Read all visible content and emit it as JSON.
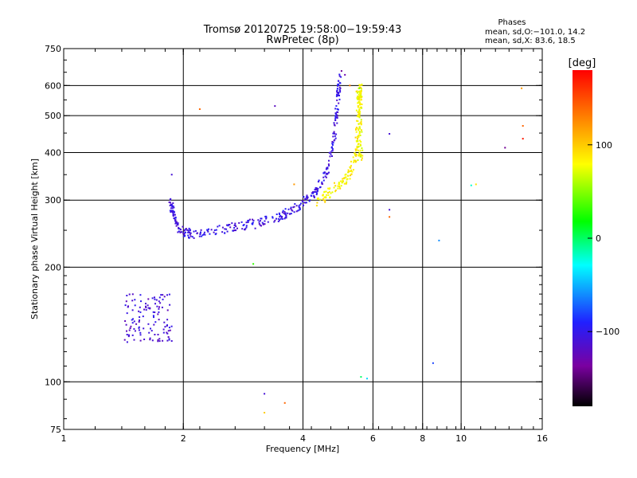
{
  "chart_data": {
    "type": "scatter",
    "title": "Tromsø 20120725  19:58:00−19:59:43",
    "subtitle": "RwPretec (8p)",
    "xlabel": "Frequency [MHz]",
    "ylabel": "Stationary phase Virtual Height [km]",
    "x_scale": "log",
    "y_scale": "log",
    "xlim": [
      1,
      16
    ],
    "ylim": [
      75,
      750
    ],
    "x_ticks": [
      1,
      2,
      4,
      6,
      8,
      10,
      16
    ],
    "x_tick_labels": [
      "1",
      "2",
      "4",
      "6",
      "8",
      "10",
      "16"
    ],
    "y_ticks": [
      75,
      100,
      200,
      300,
      400,
      500,
      600,
      750
    ],
    "y_tick_labels": [
      "75",
      "100",
      "200",
      "300",
      "400",
      "500",
      "600",
      "750"
    ],
    "x_gridlines": [
      2,
      4,
      6,
      8,
      10
    ],
    "y_gridlines": [
      100,
      200,
      300,
      400,
      500,
      600
    ],
    "stats": {
      "heading": "Phases",
      "line_o": "mean, sd,O:−101.0, 14.2",
      "line_x": "mean, sd,X:  83.6, 18.5"
    },
    "colorbar": {
      "label": "[deg]",
      "range": [
        -180,
        180
      ],
      "ticks": [
        100,
        0,
        -100
      ],
      "tick_labels": [
        "100",
        "0",
        "−100"
      ],
      "colormap": [
        "#000000",
        "#7a00a0",
        "#2020ff",
        "#00ffff",
        "#00ff00",
        "#ffff00",
        "#ff8000",
        "#ff0000"
      ]
    },
    "groups": [
      {
        "name": "low-layer o-mode echoes",
        "phase": -110,
        "x_range": [
          1.42,
          1.88
        ],
        "y_range": [
          127,
          170
        ],
        "count": 120
      },
      {
        "name": "F-layer o-mode trace",
        "phase": -105,
        "curve": [
          [
            1.85,
            300
          ],
          [
            1.95,
            250
          ],
          [
            2.1,
            245
          ],
          [
            2.5,
            252
          ],
          [
            3.0,
            260
          ],
          [
            3.5,
            272
          ],
          [
            3.9,
            290
          ],
          [
            4.3,
            315
          ],
          [
            4.6,
            360
          ],
          [
            4.8,
            440
          ],
          [
            4.9,
            560
          ],
          [
            4.95,
            630
          ]
        ],
        "spread": 12,
        "count": 380
      },
      {
        "name": "x-mode trace",
        "phase": 85,
        "curve": [
          [
            4.35,
            295
          ],
          [
            4.6,
            310
          ],
          [
            4.9,
            330
          ],
          [
            5.1,
            340
          ],
          [
            5.3,
            360
          ],
          [
            5.45,
            400
          ],
          [
            5.5,
            470
          ],
          [
            5.55,
            560
          ],
          [
            5.6,
            600
          ]
        ],
        "spread": 14,
        "count": 160
      },
      {
        "name": "x-mode vertical band",
        "phase": 80,
        "x_range": [
          5.45,
          5.65
        ],
        "y_range": [
          380,
          580
        ],
        "count": 80
      }
    ],
    "isolated_points": [
      {
        "x": 2.2,
        "y": 520,
        "phase": 140
      },
      {
        "x": 3.4,
        "y": 530,
        "phase": -120
      },
      {
        "x": 1.87,
        "y": 350,
        "phase": -110
      },
      {
        "x": 3.0,
        "y": 204,
        "phase": 30
      },
      {
        "x": 3.2,
        "y": 93,
        "phase": -110
      },
      {
        "x": 3.2,
        "y": 83,
        "phase": 100
      },
      {
        "x": 3.6,
        "y": 88,
        "phase": 140
      },
      {
        "x": 3.8,
        "y": 330,
        "phase": 120
      },
      {
        "x": 1.87,
        "y": 128,
        "phase": -110
      },
      {
        "x": 5.6,
        "y": 103,
        "phase": 0
      },
      {
        "x": 5.8,
        "y": 102,
        "phase": -40
      },
      {
        "x": 6.6,
        "y": 448,
        "phase": -110
      },
      {
        "x": 6.6,
        "y": 283,
        "phase": -110
      },
      {
        "x": 6.6,
        "y": 271,
        "phase": 140
      },
      {
        "x": 8.8,
        "y": 235,
        "phase": -60
      },
      {
        "x": 8.5,
        "y": 112,
        "phase": -80
      },
      {
        "x": 10.6,
        "y": 328,
        "phase": -20
      },
      {
        "x": 10.9,
        "y": 330,
        "phase": 90
      },
      {
        "x": 12.9,
        "y": 412,
        "phase": -140
      },
      {
        "x": 14.2,
        "y": 590,
        "phase": 120
      },
      {
        "x": 14.3,
        "y": 470,
        "phase": 140
      },
      {
        "x": 14.3,
        "y": 435,
        "phase": 170
      },
      {
        "x": 5.1,
        "y": 640,
        "phase": -130
      },
      {
        "x": 5.0,
        "y": 655,
        "phase": -140
      },
      {
        "x": 5.55,
        "y": 590,
        "phase": 40
      },
      {
        "x": 5.25,
        "y": 600,
        "phase": 130
      }
    ]
  }
}
